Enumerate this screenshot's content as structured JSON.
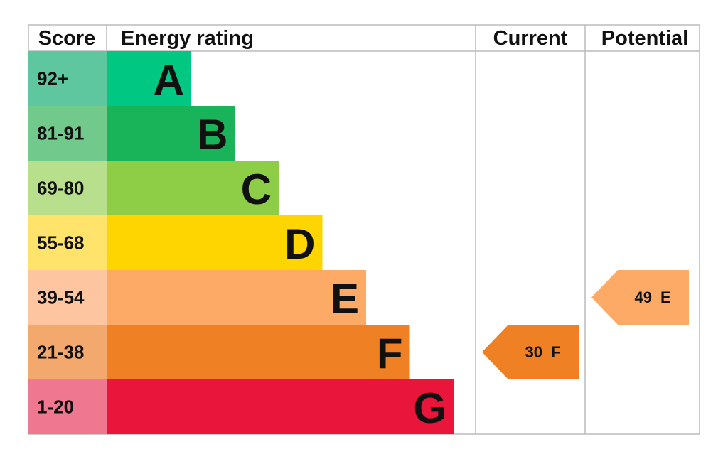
{
  "header": {
    "score": "Score",
    "rating": "Energy rating",
    "current": "Current",
    "potential": "Potential"
  },
  "bands": [
    {
      "range": "92+",
      "letter": "A",
      "color": "#00c781",
      "light": "#5fc7a0"
    },
    {
      "range": "81-91",
      "letter": "B",
      "color": "#19b459",
      "light": "#71c98b"
    },
    {
      "range": "69-80",
      "letter": "C",
      "color": "#8dce46",
      "light": "#b8e08c"
    },
    {
      "range": "55-68",
      "letter": "D",
      "color": "#ffd500",
      "light": "#ffe36a"
    },
    {
      "range": "39-54",
      "letter": "E",
      "color": "#fcaa65",
      "light": "#fdc6a0"
    },
    {
      "range": "21-38",
      "letter": "F",
      "color": "#ef8023",
      "light": "#f3a86d"
    },
    {
      "range": "1-20",
      "letter": "G",
      "color": "#e9153b",
      "light": "#f07790"
    }
  ],
  "current": {
    "value": 30,
    "letter": "F"
  },
  "potential": {
    "value": 49,
    "letter": "E"
  }
}
